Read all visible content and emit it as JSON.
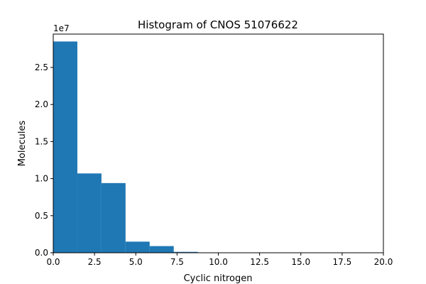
{
  "chart_data": {
    "type": "bar",
    "title": "Histogram of CNOS 51076622",
    "xlabel": "Cyclic nitrogen",
    "ylabel": "Molecules",
    "y_offset_label": "1e7",
    "xlim": [
      0,
      20
    ],
    "ylim": [
      0,
      2.95
    ],
    "x_ticks": [
      0,
      2.5,
      5,
      7.5,
      10,
      12.5,
      15,
      17.5,
      20
    ],
    "x_tick_labels": [
      "0.0",
      "2.5",
      "5.0",
      "7.5",
      "10.0",
      "12.5",
      "15.0",
      "17.5",
      "20.0"
    ],
    "y_ticks": [
      0,
      0.5,
      1.0,
      1.5,
      2.0,
      2.5
    ],
    "y_tick_labels": [
      "0.0",
      "0.5",
      "1.0",
      "1.5",
      "2.0",
      "2.5"
    ],
    "grid": false,
    "bar_color": "#1f77b4",
    "bins": [
      {
        "x0": 0.0,
        "x1": 1.46,
        "value": 2.85
      },
      {
        "x0": 1.46,
        "x1": 2.92,
        "value": 1.07
      },
      {
        "x0": 2.92,
        "x1": 4.38,
        "value": 0.94
      },
      {
        "x0": 4.38,
        "x1": 5.84,
        "value": 0.15
      },
      {
        "x0": 5.84,
        "x1": 7.3,
        "value": 0.09
      },
      {
        "x0": 7.3,
        "x1": 8.76,
        "value": 0.012
      },
      {
        "x0": 8.76,
        "x1": 10.22,
        "value": 0.002
      },
      {
        "x0": 10.22,
        "x1": 11.68,
        "value": 0.0008
      },
      {
        "x0": 11.68,
        "x1": 13.14,
        "value": 0.0003
      },
      {
        "x0": 13.14,
        "x1": 14.6,
        "value": 0.0002
      },
      {
        "x0": 14.6,
        "x1": 16.06,
        "value": 0.0001
      },
      {
        "x0": 16.06,
        "x1": 17.52,
        "value": 0.0001
      },
      {
        "x0": 17.52,
        "x1": 18.98,
        "value": 0.0001
      },
      {
        "x0": 18.98,
        "x1": 20.0,
        "value": 0.0001
      }
    ]
  }
}
